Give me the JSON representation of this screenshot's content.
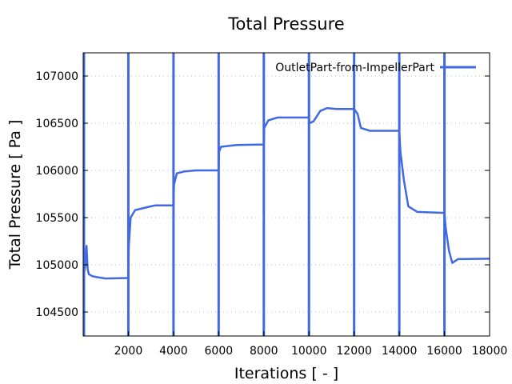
{
  "chart_data": {
    "type": "line",
    "title": "Total Pressure",
    "xlabel": "Iterations [ - ]",
    "ylabel": "Total Pressure [ Pa ]",
    "xlim": [
      0,
      18000
    ],
    "ylim": [
      104246,
      107246
    ],
    "xticks": [
      2000,
      4000,
      6000,
      8000,
      10000,
      12000,
      14000,
      16000,
      18000
    ],
    "yticks": [
      104500,
      105000,
      105500,
      106000,
      106500,
      107000
    ],
    "grid": true,
    "legend_position": "top-right",
    "color": "#4169e1",
    "series": [
      {
        "name": "OutletPart-from-ImpellerPart",
        "spikes_at": [
          0,
          2000,
          4000,
          6000,
          8000,
          10000,
          12000,
          14000,
          16000
        ],
        "x": [
          0,
          100,
          150,
          200,
          250,
          400,
          600,
          1000,
          2000,
          2020,
          2100,
          2300,
          3000,
          3200,
          4000,
          4020,
          4150,
          4500,
          5000,
          6000,
          6020,
          6100,
          6800,
          8000,
          8020,
          8200,
          8600,
          10000,
          10020,
          10200,
          10500,
          10800,
          11200,
          12000,
          12150,
          12300,
          12700,
          14000,
          14050,
          14200,
          14400,
          14800,
          16000,
          16050,
          16200,
          16350,
          16600,
          18000
        ],
        "y": [
          104860,
          105000,
          105200,
          104950,
          104900,
          104880,
          104870,
          104855,
          104860,
          105200,
          105500,
          105580,
          105620,
          105630,
          105630,
          105850,
          105970,
          105990,
          106000,
          106000,
          106200,
          106250,
          106270,
          106275,
          106450,
          106530,
          106560,
          106560,
          106500,
          106520,
          106630,
          106660,
          106650,
          106650,
          106600,
          106450,
          106420,
          106420,
          106200,
          105900,
          105620,
          105560,
          105550,
          105400,
          105150,
          105020,
          105060,
          105065
        ]
      }
    ]
  }
}
